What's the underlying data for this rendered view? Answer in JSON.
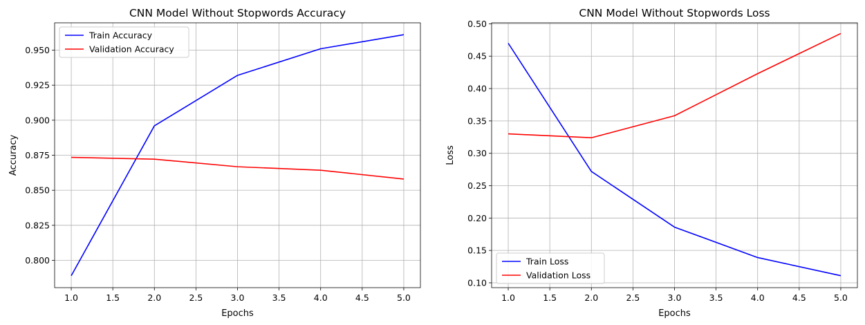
{
  "chart_data": [
    {
      "type": "line",
      "title": "CNN Model Without Stopwords Accuracy",
      "xlabel": "Epochs",
      "ylabel": "Accuracy",
      "x": [
        1,
        2,
        3,
        4,
        5
      ],
      "xlim": [
        0.8,
        5.2
      ],
      "ylim": [
        0.7805,
        0.9695
      ],
      "xticks": [
        "1.0",
        "1.5",
        "2.0",
        "2.5",
        "3.0",
        "3.5",
        "4.0",
        "4.5",
        "5.0"
      ],
      "yticks": [
        "0.800",
        "0.825",
        "0.850",
        "0.875",
        "0.900",
        "0.925",
        "0.950"
      ],
      "grid": true,
      "legend_position": "top-left",
      "series": [
        {
          "name": "Train Accuracy",
          "color": "#0000ff",
          "values": [
            0.789,
            0.896,
            0.932,
            0.951,
            0.961
          ]
        },
        {
          "name": "Validation Accuracy",
          "color": "#ff0000",
          "values": [
            0.8735,
            0.8722,
            0.8668,
            0.8643,
            0.858
          ]
        }
      ]
    },
    {
      "type": "line",
      "title": "CNN Model Without Stopwords Loss",
      "xlabel": "Epochs",
      "ylabel": "Loss",
      "x": [
        1,
        2,
        3,
        4,
        5
      ],
      "xlim": [
        0.8,
        5.2
      ],
      "ylim": [
        0.0925,
        0.5015
      ],
      "xticks": [
        "1.0",
        "1.5",
        "2.0",
        "2.5",
        "3.0",
        "3.5",
        "4.0",
        "4.5",
        "5.0"
      ],
      "yticks": [
        "0.10",
        "0.15",
        "0.20",
        "0.25",
        "0.30",
        "0.35",
        "0.40",
        "0.45",
        "0.50"
      ],
      "grid": true,
      "legend_position": "bottom-left",
      "series": [
        {
          "name": "Train Loss",
          "color": "#0000ff",
          "values": [
            0.47,
            0.272,
            0.186,
            0.139,
            0.111
          ]
        },
        {
          "name": "Validation Loss",
          "color": "#ff0000",
          "values": [
            0.33,
            0.324,
            0.358,
            0.423,
            0.485
          ]
        }
      ]
    }
  ]
}
